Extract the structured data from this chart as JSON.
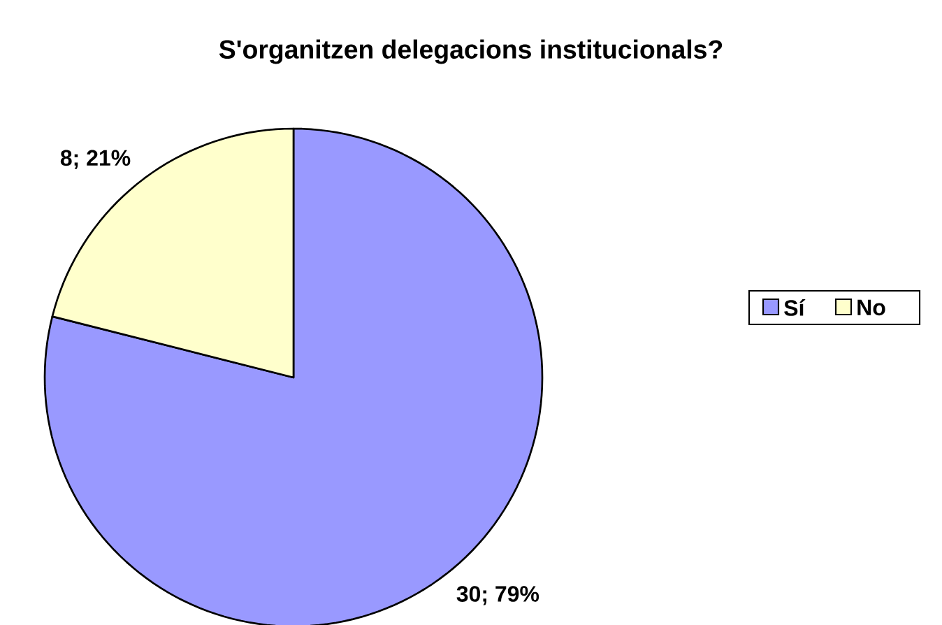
{
  "chart_data": {
    "type": "pie",
    "title": "S'organitzen delegacions institucionals?",
    "categories": [
      "Sí",
      "No"
    ],
    "values": [
      30,
      8
    ],
    "colors": [
      "#9999ff",
      "#ffffcc"
    ],
    "value_labels": [
      "30; 79%",
      "8; 21%"
    ],
    "legend": "right"
  }
}
